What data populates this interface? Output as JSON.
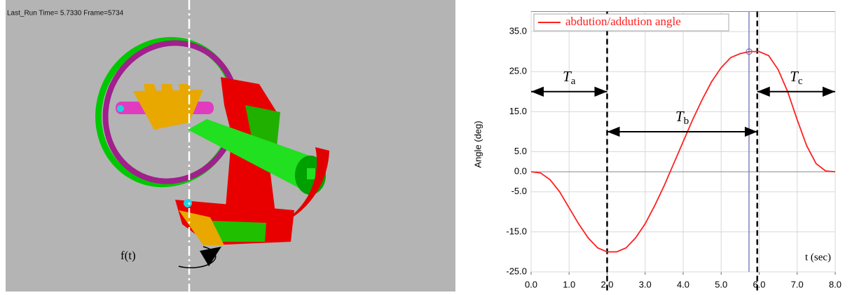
{
  "viewer": {
    "status": "Last_Run   Time= 5.7330   Frame=5734",
    "motion_label": "f(t)"
  },
  "chart_data": {
    "type": "line",
    "ylabel": "Angle (deg)",
    "xlabel": "t (sec)",
    "x": [
      0,
      0.25,
      0.5,
      0.75,
      1.0,
      1.25,
      1.5,
      1.75,
      2.0,
      2.25,
      2.5,
      2.75,
      3.0,
      3.25,
      3.5,
      3.75,
      4.0,
      4.25,
      4.5,
      4.75,
      5.0,
      5.25,
      5.5,
      5.75,
      6.0,
      6.25,
      6.5,
      6.75,
      7.0,
      7.25,
      7.5,
      7.75,
      8.0
    ],
    "series": [
      {
        "name": "abdution/addution angle",
        "color": "#ff2020",
        "values": [
          0,
          -0.3,
          -2,
          -5,
          -9,
          -13,
          -16.5,
          -19,
          -20,
          -20,
          -19,
          -16.5,
          -13,
          -8.5,
          -3.5,
          2,
          7.5,
          13,
          18,
          22.5,
          26,
          28.5,
          29.5,
          30,
          30,
          29,
          25.5,
          20,
          13,
          6.5,
          2,
          0.2,
          0
        ]
      }
    ],
    "xlim": [
      0,
      8
    ],
    "ylim": [
      -25,
      40
    ],
    "xticks": [
      {
        "value": 0,
        "label": "0.0"
      },
      {
        "value": 1,
        "label": "1.0"
      },
      {
        "value": 2,
        "label": "2.0"
      },
      {
        "value": 3,
        "label": "3.0"
      },
      {
        "value": 4,
        "label": "4.0"
      },
      {
        "value": 5,
        "label": "5.0"
      },
      {
        "value": 6,
        "label": "6.0"
      },
      {
        "value": 7,
        "label": "7.0"
      },
      {
        "value": 8,
        "label": "8.0"
      }
    ],
    "yticks": [
      {
        "value": 35,
        "label": "35.0"
      },
      {
        "value": 25,
        "label": "25.0"
      },
      {
        "value": 15,
        "label": "15.0"
      },
      {
        "value": 5,
        "label": "5.0"
      },
      {
        "value": 0,
        "label": "0.0"
      },
      {
        "value": -5,
        "label": "-5.0"
      },
      {
        "value": -15,
        "label": "-15.0"
      },
      {
        "value": -25,
        "label": "-25.0"
      }
    ],
    "grid": true,
    "phase_bounds": [
      2.0,
      5.95
    ],
    "cursor": {
      "x": 5.733,
      "y": 30
    },
    "phases": [
      {
        "label": "T",
        "sub": "a",
        "start": 0,
        "end": 2.0,
        "y": 20
      },
      {
        "label": "T",
        "sub": "b",
        "start": 2.0,
        "end": 5.95,
        "y": 10
      },
      {
        "label": "T",
        "sub": "c",
        "start": 5.95,
        "end": 8,
        "y": 20
      }
    ]
  }
}
